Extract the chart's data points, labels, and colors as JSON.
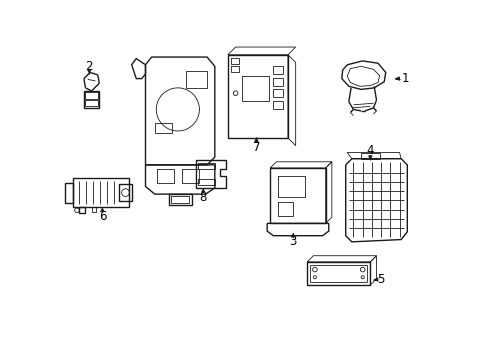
{
  "bg_color": "#ffffff",
  "line_color": "#1a1a1a",
  "label_color": "#000000",
  "lw_main": 1.0,
  "lw_thin": 0.6,
  "lw_label": 0.7,
  "components": [
    "1",
    "2",
    "3",
    "4",
    "5",
    "6",
    "7",
    "8"
  ]
}
